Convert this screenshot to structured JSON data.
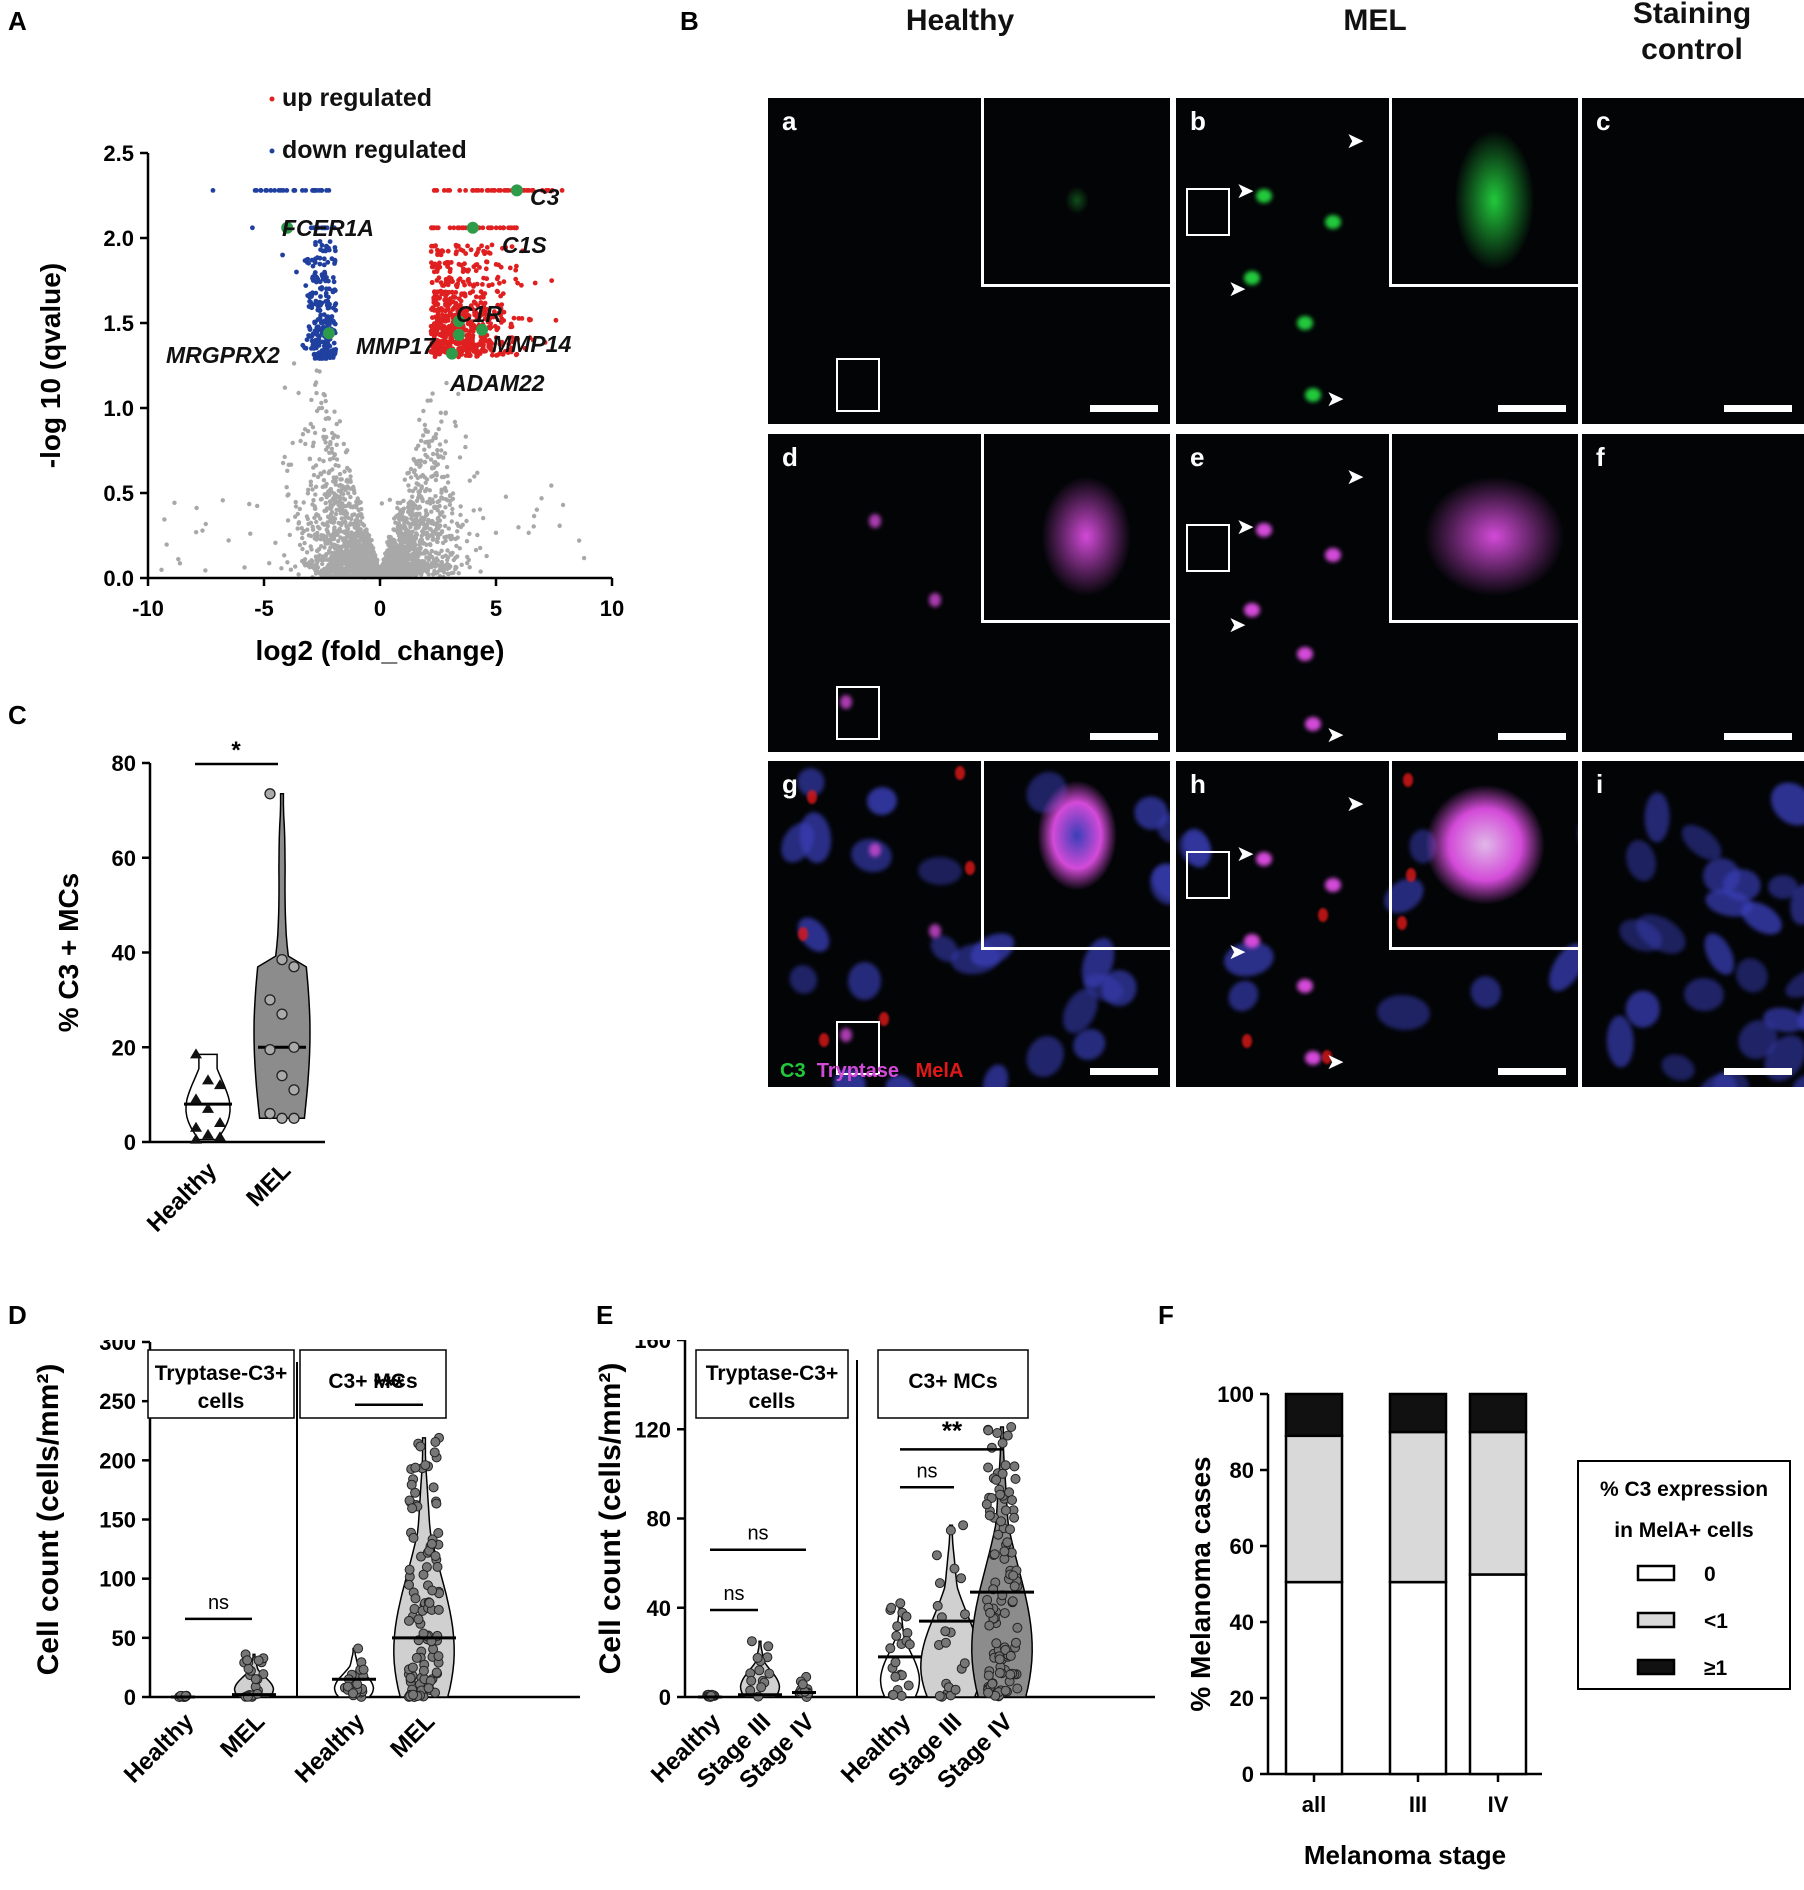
{
  "panels": {
    "A": "A",
    "B": "B",
    "C": "C",
    "D": "D",
    "E": "E",
    "F": "F"
  },
  "micro": {
    "columns": [
      "Healthy",
      "MEL",
      "Staining\ncontrol"
    ],
    "col_l1": "Staining",
    "col_l2": "control",
    "letters": [
      "a",
      "b",
      "c",
      "d",
      "e",
      "f",
      "g",
      "h",
      "i"
    ],
    "channels": {
      "c3": "C3",
      "tryptase": "Tryptase",
      "mela": "MelA"
    },
    "colors": {
      "c3": "#22c93c",
      "tryptase": "#d34ad8",
      "mela": "#e01818",
      "nuclei": "#3a3fb8"
    }
  },
  "chart_data": [
    {
      "id": "A",
      "type": "scatter",
      "xlabel": "log2 (fold_change)",
      "ylabel": "-log 10  (qvalue)",
      "xlim": [
        -10,
        10
      ],
      "ylim": [
        0,
        2.5
      ],
      "xticks": [
        -10,
        -5,
        0,
        5,
        10
      ],
      "yticks": [
        0.0,
        0.5,
        1.0,
        1.5,
        2.0,
        2.5
      ],
      "legend": [
        {
          "name": "up regulated",
          "color": "#e02020"
        },
        {
          "name": "down regulated",
          "color": "#2040a0"
        }
      ],
      "highlighted": [
        {
          "gene": "C3",
          "x": 5.9,
          "y": 2.28
        },
        {
          "gene": "C1S",
          "x": 4.0,
          "y": 2.06
        },
        {
          "gene": "FCER1A",
          "x": -4.0,
          "y": 2.06
        },
        {
          "gene": "C1R",
          "x": 3.4,
          "y": 1.51
        },
        {
          "gene": "MMP14",
          "x": 4.4,
          "y": 1.46
        },
        {
          "gene": "MMP17",
          "x": 3.4,
          "y": 1.43
        },
        {
          "gene": "MRGPRX2",
          "x": -2.2,
          "y": 1.44
        },
        {
          "gene": "ADAM22",
          "x": 3.1,
          "y": 1.32
        }
      ]
    },
    {
      "id": "C",
      "type": "violin",
      "ylabel": "% C3 + MCs",
      "ylim": [
        0,
        80
      ],
      "yticks": [
        0,
        20,
        40,
        60,
        80
      ],
      "categories": [
        "Healthy",
        "MEL"
      ],
      "significance": "*",
      "series": [
        {
          "name": "Healthy",
          "values": [
            18.5,
            13,
            12,
            9,
            7,
            4,
            3,
            1.5,
            1,
            0.5
          ],
          "median": 8
        },
        {
          "name": "MEL",
          "values": [
            73.5,
            38.5,
            37,
            30,
            27,
            20,
            19.5,
            14,
            11,
            6,
            5,
            5
          ],
          "median": 20
        }
      ]
    },
    {
      "id": "D",
      "type": "violin",
      "ylabel": "Cell count (cells/mm²)",
      "ylim": [
        0,
        300
      ],
      "yticks": [
        0,
        50,
        100,
        150,
        200,
        250,
        300
      ],
      "groups": [
        {
          "title1": "Tryptase-C3+",
          "title2": "cells",
          "categories": [
            "Healthy",
            "MEL"
          ],
          "significance": "ns"
        },
        {
          "title1": "C3+ MCs",
          "title2": "",
          "categories": [
            "Healthy",
            "MEL"
          ],
          "significance": "***"
        }
      ],
      "series": [
        {
          "name": "Healthy",
          "group": 0,
          "max": 1,
          "median": 0
        },
        {
          "name": "MEL",
          "group": 0,
          "max": 36,
          "median": 2
        },
        {
          "name": "Healthy",
          "group": 1,
          "max": 41,
          "median": 15
        },
        {
          "name": "MEL",
          "group": 1,
          "max": 219,
          "median": 50
        }
      ]
    },
    {
      "id": "E",
      "type": "violin",
      "ylabel": "Cell count (cells/mm²)",
      "ylim": [
        0,
        160
      ],
      "yticks": [
        0,
        40,
        80,
        120,
        160
      ],
      "groups": [
        {
          "title1": "Tryptase-C3+",
          "title2": "cells",
          "categories": [
            "Healthy",
            "Stage III",
            "Stage IV"
          ],
          "significance": [
            "ns",
            "ns"
          ]
        },
        {
          "title1": "C3+ MCs",
          "title2": "",
          "categories": [
            "Healthy",
            "Stage III",
            "Stage IV"
          ],
          "significance": [
            "ns",
            "**"
          ]
        }
      ],
      "series": [
        {
          "name": "Healthy",
          "group": 0,
          "max": 1,
          "median": 0
        },
        {
          "name": "Stage III",
          "group": 0,
          "max": 25,
          "median": 1
        },
        {
          "name": "Stage IV",
          "group": 0,
          "max": 9,
          "median": 2
        },
        {
          "name": "Healthy",
          "group": 1,
          "max": 42,
          "median": 18
        },
        {
          "name": "Stage III",
          "group": 1,
          "max": 77,
          "median": 34
        },
        {
          "name": "Stage IV",
          "group": 1,
          "max": 121,
          "median": 47
        }
      ]
    },
    {
      "id": "F",
      "type": "stacked-bar",
      "xlabel": "Melanoma stage",
      "ylabel": "% Melanoma cases",
      "ylim": [
        0,
        100
      ],
      "yticks": [
        0,
        20,
        40,
        60,
        80,
        100
      ],
      "categories": [
        "all",
        "III",
        "IV"
      ],
      "legend_title1": "% C3 expression",
      "legend_title2": "in MelA+ cells",
      "series": [
        {
          "name": "0",
          "color": "#ffffff",
          "values": [
            50.5,
            50.5,
            52.5
          ]
        },
        {
          "name": "<1",
          "color": "#d9d9d9",
          "values": [
            38.5,
            39.5,
            37.5
          ]
        },
        {
          "name": "≥1",
          "color": "#111111",
          "values": [
            11,
            10,
            10
          ]
        }
      ]
    }
  ]
}
